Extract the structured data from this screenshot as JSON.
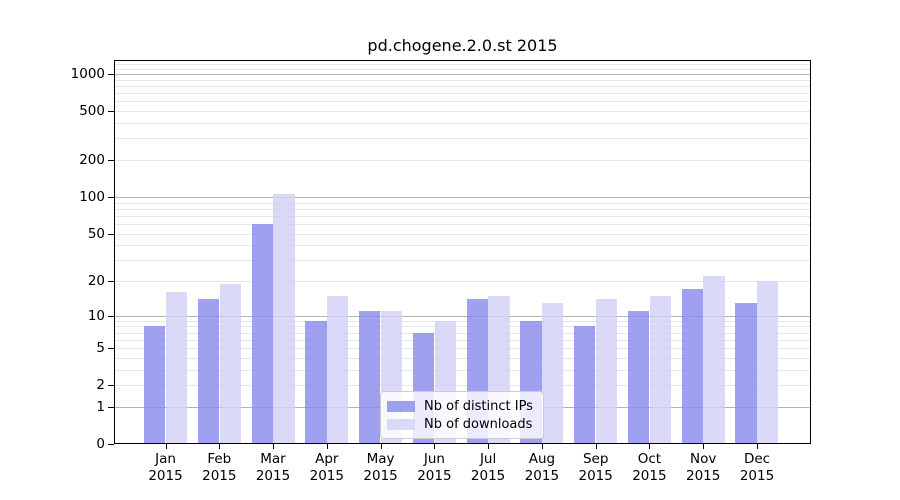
{
  "chart_data": {
    "type": "bar",
    "title": "pd.chogene.2.0.st 2015",
    "categories": [
      "Jan",
      "Feb",
      "Mar",
      "Apr",
      "May",
      "Jun",
      "Jul",
      "Aug",
      "Sep",
      "Oct",
      "Nov",
      "Dec"
    ],
    "year": "2015",
    "series": [
      {
        "name": "Nb of distinct IPs",
        "color": "#8888ee",
        "alpha": 0.8,
        "values": [
          8,
          14,
          60,
          9,
          11,
          7,
          14,
          9,
          8,
          11,
          17,
          13
        ]
      },
      {
        "name": "Nb of downloads",
        "color": "#d1d1f6",
        "alpha": 0.8,
        "values": [
          16,
          19,
          105,
          15,
          11,
          9,
          15,
          13,
          14,
          15,
          22,
          20
        ]
      }
    ],
    "xlabel": "",
    "ylabel": "",
    "y_ticks": [
      0,
      1,
      2,
      5,
      10,
      20,
      50,
      100,
      200,
      500,
      1000
    ],
    "yscale": "log10(1+v)",
    "ylim": [
      0,
      1300
    ],
    "grid": "on",
    "grid_position": "above-bars",
    "legend_position": "lower-center"
  }
}
